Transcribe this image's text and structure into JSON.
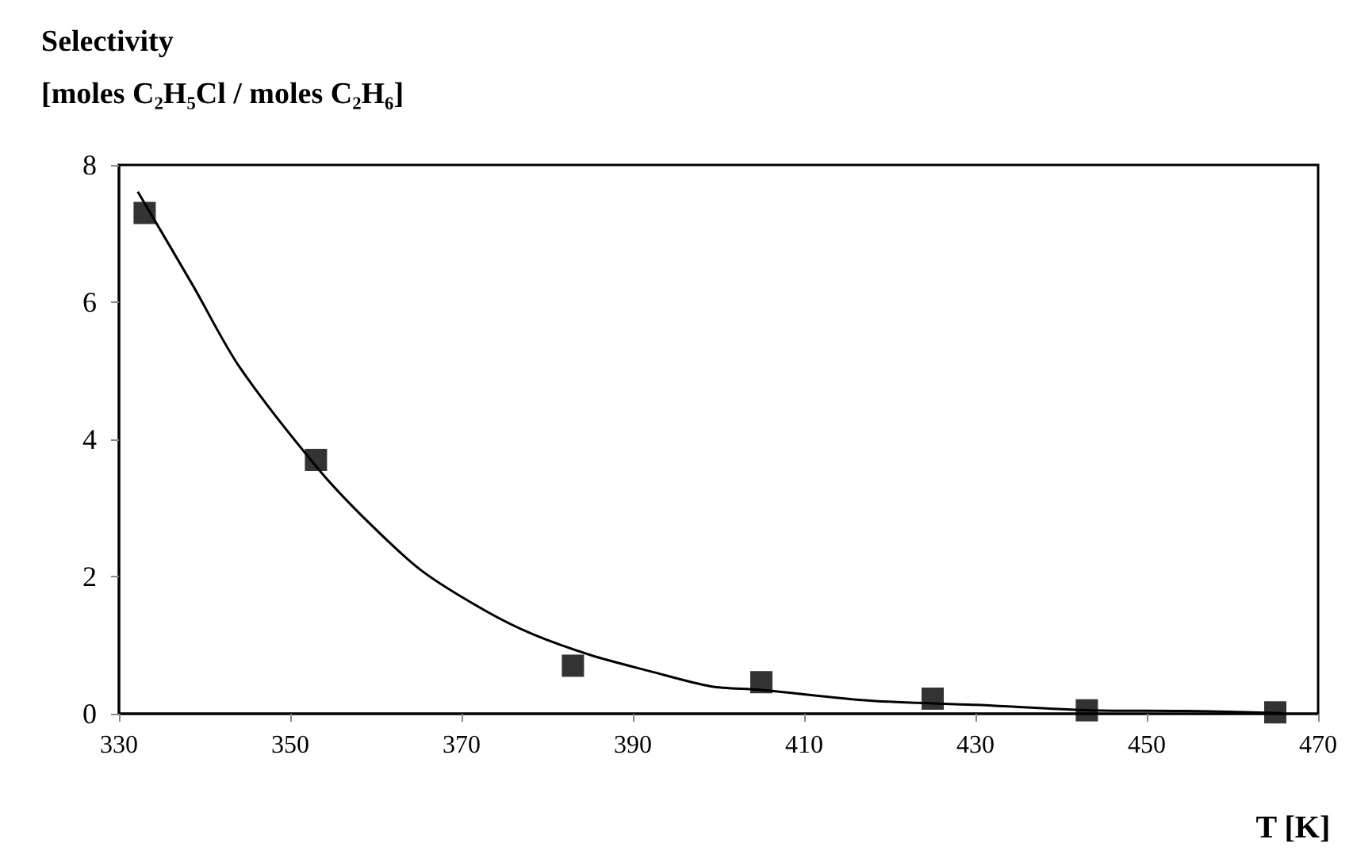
{
  "chart_data": {
    "type": "scatter",
    "ylabel": "Selectivity\n[moles C₂H₅Cl / moles C₂H₆]",
    "xlabel": "T [K]",
    "xlim": [
      330,
      470
    ],
    "xticks": [
      330,
      350,
      370,
      390,
      410,
      430,
      450,
      470
    ],
    "ylim": [
      0,
      8
    ],
    "yticks": [
      0,
      2,
      4,
      6,
      8
    ],
    "grid": false,
    "series": [
      {
        "marker": "square",
        "color": "#000000",
        "x": [
          333,
          353,
          383,
          405,
          425,
          443,
          465
        ],
        "values": [
          7.3,
          3.7,
          0.7,
          0.46,
          0.22,
          0.05,
          0.02
        ]
      },
      {
        "type": "line",
        "marker": "none",
        "line_style": "solid",
        "color": "#000000",
        "x": [
          332.2,
          338.6,
          344.1,
          353.4,
          359.3,
          365.4,
          372.8,
          378.3,
          385.2,
          392,
          399.1,
          404.8,
          417.7,
          430,
          443.6,
          454.7,
          465.8
        ],
        "values": [
          7.61,
          6.25,
          5.05,
          3.55,
          2.77,
          2.08,
          1.5,
          1.16,
          0.85,
          0.62,
          0.4,
          0.35,
          0.19,
          0.13,
          0.05,
          0.04,
          0.01
        ]
      }
    ]
  }
}
